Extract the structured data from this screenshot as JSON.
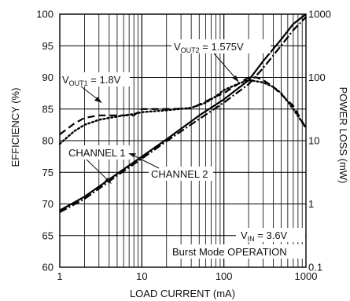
{
  "chart_data": {
    "type": "line",
    "xlabel": "LOAD CURRENT (mA)",
    "ylabel_left": "EFFICIENCY (%)",
    "ylabel_right": "POWER LOSS (mW)",
    "x_scale": "log",
    "xlim": [
      1,
      1000
    ],
    "ylim_left": [
      60,
      100
    ],
    "ylim_right": [
      0.1,
      1000
    ],
    "y_right_scale": "log",
    "grid": true,
    "x_ticks": [
      "1",
      "10",
      "100",
      "1000"
    ],
    "y_left_ticks": [
      "60",
      "65",
      "70",
      "75",
      "80",
      "85",
      "90",
      "95",
      "100"
    ],
    "y_right_ticks": [
      "0.1",
      "1",
      "10",
      "100",
      "1000"
    ],
    "series": [
      {
        "name": "VOUT1 = 1.8V",
        "axis": "left",
        "style": "dotted",
        "x": [
          1,
          1.5,
          2,
          3,
          4,
          5,
          6,
          8,
          10,
          20,
          40,
          60,
          80,
          100,
          150,
          200,
          300,
          400,
          500,
          700,
          1000
        ],
        "y": [
          79.5,
          81.5,
          82.5,
          83.3,
          83.6,
          83.8,
          84.0,
          84.2,
          84.5,
          84.8,
          85.2,
          86.0,
          87.0,
          88.0,
          89.0,
          89.6,
          89.2,
          88.5,
          87.5,
          85.0,
          82.0
        ]
      },
      {
        "name": "VOUT2 = 1.575V",
        "axis": "left",
        "style": "dashed",
        "x": [
          1,
          1.5,
          2,
          3,
          5,
          8,
          10,
          20,
          40,
          60,
          80,
          100,
          150,
          200,
          250,
          300,
          400,
          500,
          700,
          1000
        ],
        "y": [
          81.0,
          82.7,
          83.6,
          84.0,
          84.0,
          84.0,
          85.0,
          85.0,
          85.1,
          86.2,
          87.0,
          87.5,
          89.0,
          90.0,
          90.0,
          89.6,
          88.5,
          87.3,
          85.5,
          82.0
        ]
      },
      {
        "name": "CHANNEL 1",
        "axis": "right",
        "style": "solid",
        "x": [
          1,
          2,
          5,
          10,
          20,
          50,
          100,
          200,
          300,
          500,
          700,
          1000
        ],
        "y": [
          0.79,
          1.3,
          3.0,
          5.6,
          10.5,
          25,
          45,
          90,
          180,
          400,
          700,
          1000
        ]
      },
      {
        "name": "CHANNEL 2",
        "axis": "right",
        "style": "dash-dot",
        "x": [
          1,
          2,
          5,
          10,
          20,
          50,
          100,
          200,
          300,
          500,
          700,
          1000
        ],
        "y": [
          0.74,
          1.2,
          2.8,
          5.2,
          9.8,
          22,
          40,
          78,
          140,
          320,
          560,
          900
        ]
      }
    ],
    "annotations": {
      "vout2_main": "V",
      "vout2_sub": "OUT2",
      "vout2_rest": " = 1.575V",
      "vout1_main": "V",
      "vout1_sub": "OUT1",
      "vout1_rest": " = 1.8V",
      "channel1": "CHANNEL 1",
      "channel2": "CHANNEL 2",
      "vin_main": "V",
      "vin_sub": "IN",
      "vin_rest": " = 3.6V",
      "mode": "Burst Mode OPERATION"
    }
  }
}
